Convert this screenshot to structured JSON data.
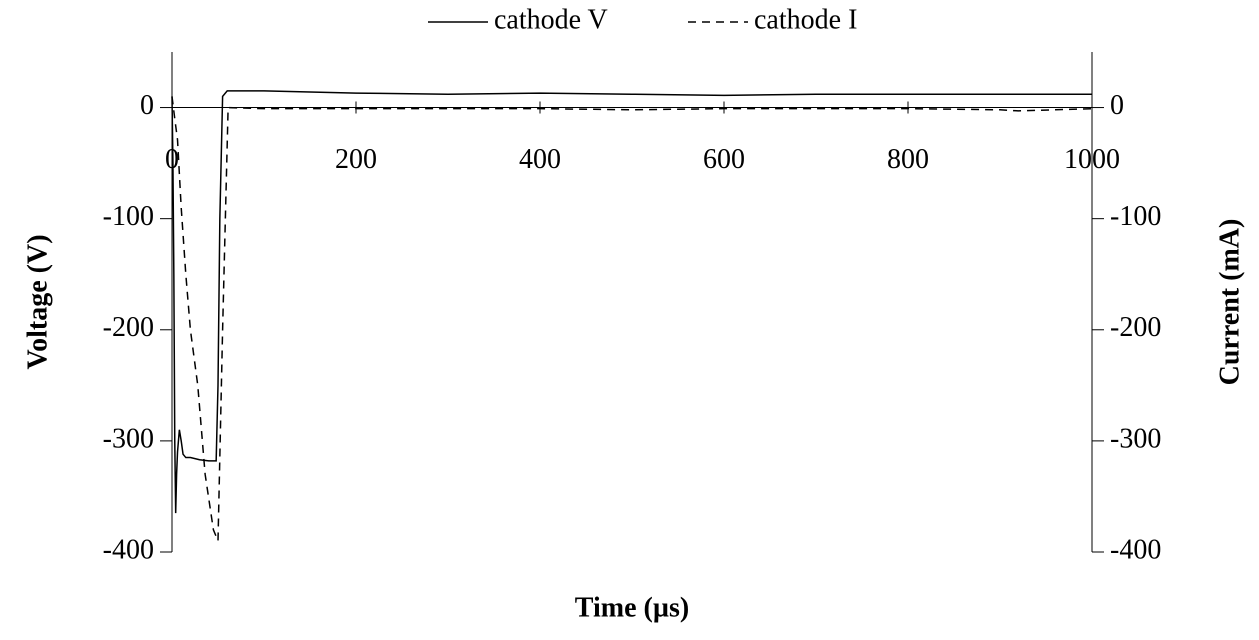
{
  "chart_data": {
    "type": "line",
    "xlabel": "Time (µs)",
    "ylabel": "Voltage (V)",
    "y2label": "Current (mA)",
    "xlim": [
      0,
      1000
    ],
    "xticks": [
      0,
      200,
      400,
      600,
      800,
      1000
    ],
    "ylim": [
      -400,
      50
    ],
    "yticks": [
      -400,
      -300,
      -200,
      -100,
      0
    ],
    "y2lim": [
      -400,
      50
    ],
    "y2ticks": [
      -400,
      -300,
      -200,
      -100,
      0
    ],
    "series": [
      {
        "name": "cathode V",
        "color": "#000000",
        "dash": false,
        "x": [
          0,
          1,
          2,
          3,
          4,
          5,
          6,
          8,
          10,
          12,
          15,
          20,
          30,
          40,
          48,
          50,
          52,
          55,
          60,
          100,
          200,
          300,
          400,
          500,
          600,
          700,
          800,
          900,
          1000
        ],
        "values": [
          10,
          -50,
          -150,
          -300,
          -365,
          -330,
          -310,
          -290,
          -300,
          -312,
          -315,
          -315,
          -317,
          -318,
          -318,
          -250,
          -100,
          10,
          15,
          15,
          13,
          12,
          13,
          12,
          11,
          12,
          12,
          12,
          12
        ]
      },
      {
        "name": "cathode I",
        "color": "#000000",
        "dash": true,
        "axis": "y2",
        "x": [
          0,
          3,
          6,
          10,
          15,
          20,
          28,
          36,
          45,
          50,
          55,
          61,
          100,
          200,
          300,
          400,
          500,
          600,
          700,
          800,
          900,
          920,
          1000
        ],
        "values": [
          10,
          -10,
          -29,
          -90,
          -150,
          -200,
          -250,
          -330,
          -380,
          -390,
          -200,
          0,
          -1,
          -1,
          -1,
          -1,
          -2,
          -1,
          -1,
          -1,
          -2,
          -3,
          -1
        ]
      }
    ]
  }
}
